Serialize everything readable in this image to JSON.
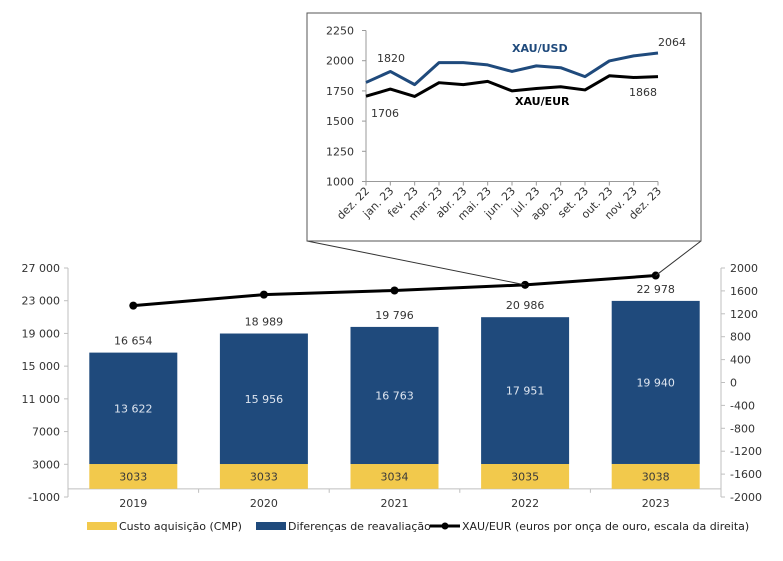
{
  "chart_data": [
    {
      "type": "bar",
      "id": "main",
      "title": "",
      "stacked": true,
      "categories": [
        "2019",
        "2020",
        "2021",
        "2022",
        "2023"
      ],
      "series": [
        {
          "name": "Custo aquisição (CMP)",
          "color": "#F2C94C",
          "values": [
            3033,
            3033,
            3034,
            3035,
            3038
          ],
          "labels": [
            "3033",
            "3033",
            "3034",
            "3035",
            "3038"
          ]
        },
        {
          "name": "Diferenças de reavaliação",
          "color": "#1F4A7C",
          "values": [
            13622,
            15956,
            16763,
            17951,
            19940
          ],
          "labels": [
            "13 622",
            "15 956",
            "16 763",
            "17 951",
            "19 940"
          ]
        }
      ],
      "totals": [
        16654,
        18989,
        19796,
        20986,
        22978
      ],
      "total_labels": [
        "16 654",
        "18 989",
        "19 796",
        "20 986",
        "22 978"
      ],
      "line_series": {
        "name": "XAU/EUR (euros por onça de ouro, escala da direita)",
        "color": "#000000",
        "axis": "right",
        "values": [
          1343,
          1535,
          1607,
          1706,
          1868
        ]
      },
      "left_axis": {
        "ylim": [
          -1000,
          27000
        ],
        "ticks": [
          27000,
          23000,
          19000,
          15000,
          11000,
          7000,
          3000,
          -1000
        ],
        "tick_labels": [
          "27 000",
          "23 000",
          "19 000",
          "15 000",
          "11 000",
          "7000",
          "3000",
          "-1000"
        ]
      },
      "right_axis": {
        "ylim": [
          -2000,
          2000
        ],
        "ticks": [
          2000,
          1600,
          1200,
          800,
          400,
          0,
          -400,
          -800,
          -1200,
          -1600,
          -2000
        ],
        "tick_labels": [
          "2000",
          "1600",
          "1200",
          "800",
          "400",
          "0",
          "-400",
          "-800",
          "-1200",
          "-1600",
          "-2000"
        ]
      },
      "xlabel": "",
      "ylabel": "",
      "grid": false,
      "legend": {
        "placement": "bottom",
        "entries": [
          {
            "label": "Custo aquisição (CMP)",
            "kind": "box",
            "color": "#F2C94C"
          },
          {
            "label": "Diferenças de reavaliação",
            "kind": "box",
            "color": "#1F4A7C"
          },
          {
            "label": "XAU/EUR (euros por onça de ouro, escala da direita)",
            "kind": "line-marker",
            "color": "#000000"
          }
        ]
      }
    },
    {
      "type": "line",
      "id": "inset",
      "title": "",
      "categories": [
        "dez. 22",
        "jan. 23",
        "fev. 23",
        "mar. 23",
        "abr. 23",
        "mai. 23",
        "jun. 23",
        "jul. 23",
        "ago. 23",
        "set. 23",
        "out. 23",
        "nov. 23",
        "dez. 23"
      ],
      "series": [
        {
          "name": "XAU/USD",
          "color": "#1F4A7C",
          "values": [
            1820,
            1911,
            1802,
            1984,
            1984,
            1965,
            1911,
            1957,
            1942,
            1868,
            1998,
            2040,
            2064
          ]
        },
        {
          "name": "XAU/EUR",
          "color": "#000000",
          "values": [
            1706,
            1765,
            1704,
            1818,
            1802,
            1829,
            1750,
            1770,
            1784,
            1758,
            1875,
            1861,
            1868
          ]
        }
      ],
      "annotations": [
        {
          "text": "1820",
          "series": "XAU/USD",
          "point": "dez. 22"
        },
        {
          "text": "2064",
          "series": "XAU/USD",
          "point": "dez. 23"
        },
        {
          "text": "1706",
          "series": "XAU/EUR",
          "point": "dez. 22"
        },
        {
          "text": "1868",
          "series": "XAU/EUR",
          "point": "dez. 23"
        }
      ],
      "ylim": [
        1000,
        2250
      ],
      "yticks": [
        2250,
        2000,
        1750,
        1500,
        1250,
        1000
      ],
      "xlabel": "",
      "ylabel": "",
      "grid": false,
      "zoom_of": {
        "chart": "main",
        "from_category": "2022",
        "to_category": "2023"
      }
    }
  ]
}
